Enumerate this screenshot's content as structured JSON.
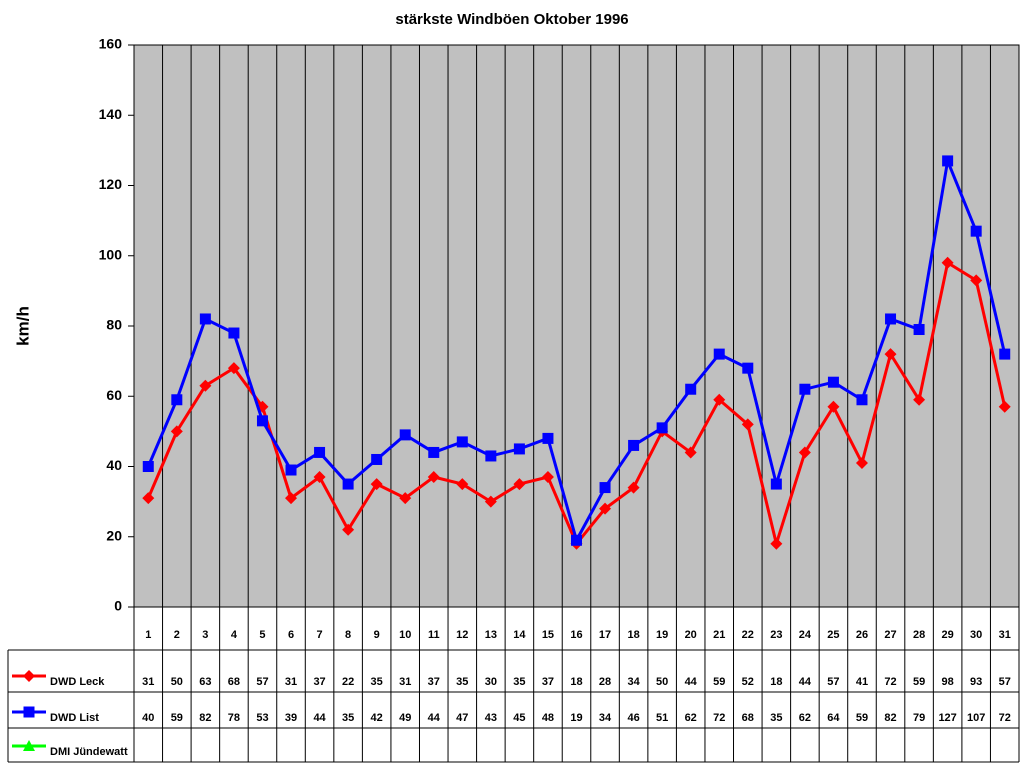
{
  "chart_data": {
    "type": "line",
    "title": "stärkste Windböen Oktober 1996",
    "y_label": "km/h",
    "categories": [
      "1",
      "2",
      "3",
      "4",
      "5",
      "6",
      "7",
      "8",
      "9",
      "10",
      "11",
      "12",
      "13",
      "14",
      "15",
      "16",
      "17",
      "18",
      "19",
      "20",
      "21",
      "22",
      "23",
      "24",
      "25",
      "26",
      "27",
      "28",
      "29",
      "30",
      "31"
    ],
    "series": [
      {
        "name": "DWD Leck",
        "color": "#ff0000",
        "marker": "diamond",
        "values": [
          31,
          50,
          63,
          68,
          57,
          31,
          37,
          22,
          35,
          31,
          37,
          35,
          30,
          35,
          37,
          18,
          28,
          34,
          50,
          44,
          59,
          52,
          18,
          44,
          57,
          41,
          72,
          59,
          98,
          93,
          57
        ]
      },
      {
        "name": "DWD List",
        "color": "#0000ff",
        "marker": "square",
        "values": [
          40,
          59,
          82,
          78,
          53,
          39,
          44,
          35,
          42,
          49,
          44,
          47,
          43,
          45,
          48,
          19,
          34,
          46,
          51,
          62,
          72,
          68,
          35,
          62,
          64,
          59,
          82,
          79,
          127,
          107,
          72
        ]
      },
      {
        "name": "DMI Jündewatt",
        "color": "#00ff00",
        "marker": "triangle",
        "values": [
          null,
          null,
          null,
          null,
          null,
          null,
          null,
          null,
          null,
          null,
          null,
          null,
          null,
          null,
          null,
          null,
          null,
          null,
          null,
          null,
          null,
          null,
          null,
          null,
          null,
          null,
          null,
          null,
          null,
          null,
          null
        ]
      }
    ],
    "ylim": [
      0,
      160
    ],
    "yticks": [
      0,
      20,
      40,
      60,
      80,
      100,
      120,
      140,
      160
    ],
    "plot_background": "#c0c0c0",
    "data_table": true
  }
}
